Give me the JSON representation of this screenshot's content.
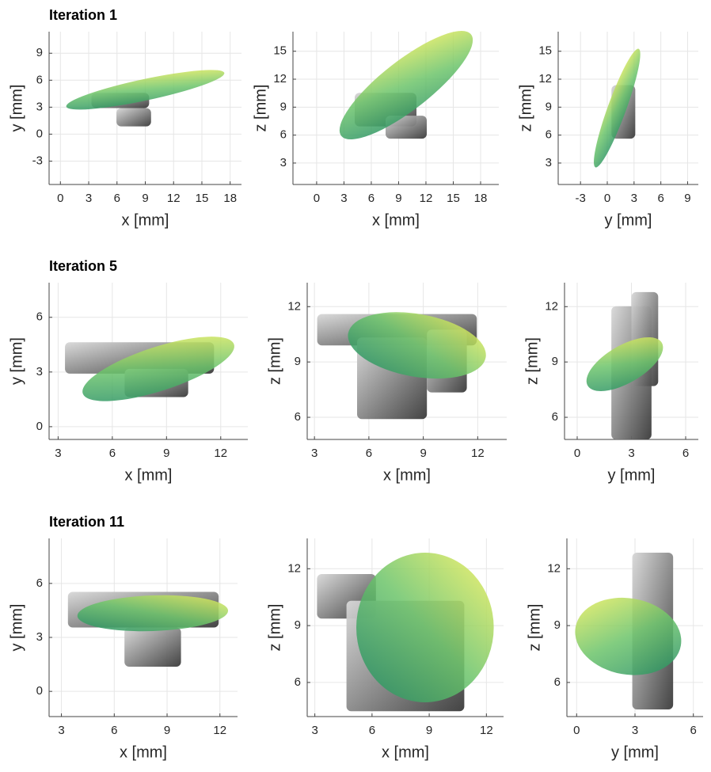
{
  "chart_data": [
    {
      "type": "surface",
      "title": "Iteration 1",
      "xlabel": "x [mm]",
      "ylabel": "y [mm]",
      "xlim": [
        -1.2,
        19.2
      ],
      "ylim": [
        -5.6,
        11.4
      ],
      "xticks": [
        0,
        3,
        6,
        9,
        12,
        15,
        18
      ],
      "yticks": [
        -3,
        0,
        3,
        6,
        9
      ],
      "grid": true
    },
    {
      "type": "surface",
      "xlabel": "x [mm]",
      "ylabel": "z [mm]",
      "xlim": [
        -2.6,
        20
      ],
      "ylim": [
        0.7,
        17.1
      ],
      "xticks": [
        0,
        3,
        6,
        9,
        12,
        15,
        18
      ],
      "yticks": [
        3,
        6,
        9,
        12,
        15
      ],
      "grid": true
    },
    {
      "type": "surface",
      "xlabel": "y [mm]",
      "ylabel": "z [mm]",
      "xlim": [
        -5.5,
        10.2
      ],
      "ylim": [
        0.7,
        17.1
      ],
      "xticks": [
        -3,
        0,
        3,
        6,
        9
      ],
      "yticks": [
        3,
        6,
        9,
        12,
        15
      ],
      "grid": true
    },
    {
      "type": "surface",
      "title": "Iteration 5",
      "xlabel": "x [mm]",
      "ylabel": "y [mm]",
      "xlim": [
        2.5,
        13.5
      ],
      "ylim": [
        -0.7,
        7.9
      ],
      "xticks": [
        3,
        6,
        9,
        12
      ],
      "yticks": [
        0,
        3,
        6
      ],
      "grid": true
    },
    {
      "type": "surface",
      "xlabel": "x [mm]",
      "ylabel": "z [mm]",
      "xlim": [
        2.6,
        13.6
      ],
      "ylim": [
        4.8,
        13.3
      ],
      "xticks": [
        3,
        6,
        9,
        12
      ],
      "yticks": [
        6,
        9,
        12
      ],
      "grid": true
    },
    {
      "type": "surface",
      "xlabel": "y [mm]",
      "ylabel": "z [mm]",
      "xlim": [
        -0.7,
        6.7
      ],
      "ylim": [
        4.8,
        13.3
      ],
      "xticks": [
        0,
        3,
        6
      ],
      "yticks": [
        6,
        9,
        12
      ],
      "grid": true
    },
    {
      "type": "surface",
      "title": "Iteration 11",
      "xlabel": "x [mm]",
      "ylabel": "y [mm]",
      "xlim": [
        2.3,
        13.0
      ],
      "ylim": [
        -1.4,
        8.5
      ],
      "xticks": [
        3,
        6,
        9,
        12
      ],
      "yticks": [
        0,
        3,
        6
      ],
      "grid": true
    },
    {
      "type": "surface",
      "xlabel": "x [mm]",
      "ylabel": "z [mm]",
      "xlim": [
        2.6,
        12.9
      ],
      "ylim": [
        4.2,
        13.6
      ],
      "xticks": [
        3,
        6,
        9,
        12
      ],
      "yticks": [
        6,
        9,
        12
      ],
      "grid": true
    },
    {
      "type": "surface",
      "xlabel": "y [mm]",
      "ylabel": "z [mm]",
      "xlim": [
        -0.5,
        6.5
      ],
      "ylim": [
        4.2,
        13.6
      ],
      "xticks": [
        0,
        3,
        6
      ],
      "yticks": [
        6,
        9,
        12
      ],
      "grid": true
    }
  ]
}
